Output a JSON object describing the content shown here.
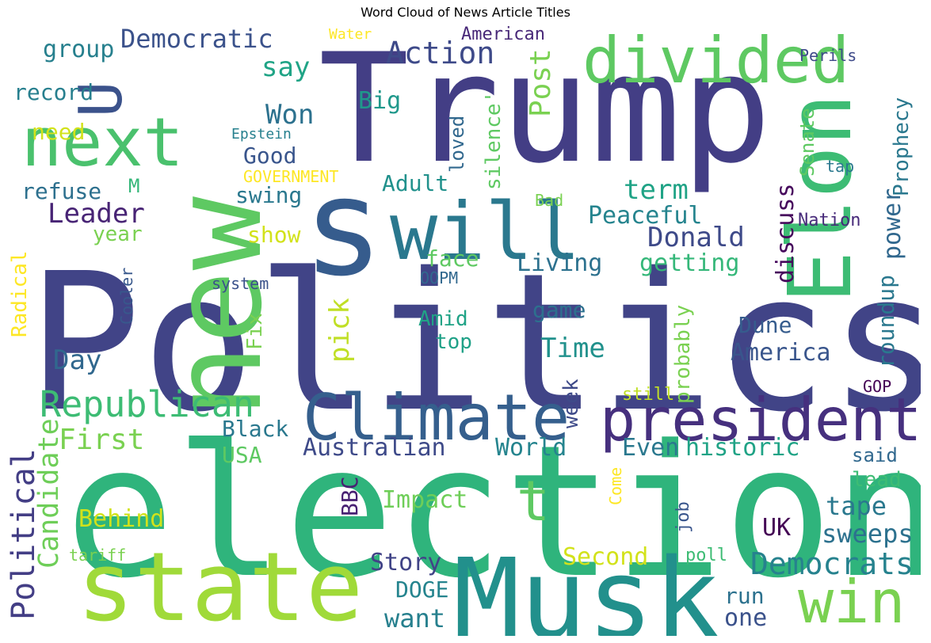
{
  "title": "Word Cloud of News Article Titles",
  "palette": [
    "#440154",
    "#3b528b",
    "#21918c",
    "#5ec962",
    "#fde725"
  ],
  "words": [
    {
      "text": "Politics",
      "color": "#414487"
    },
    {
      "text": "election",
      "color": "#2fb47c"
    },
    {
      "text": "Trump",
      "color": "#433e85"
    },
    {
      "text": "Musk",
      "color": "#22908c"
    },
    {
      "text": "state",
      "color": "#a0da39"
    },
    {
      "text": "new",
      "color": "#5ec962"
    },
    {
      "text": "s",
      "color": "#365c8d"
    },
    {
      "text": "Elon",
      "color": "#3dbc74"
    },
    {
      "text": "will",
      "color": "#2a788e"
    },
    {
      "text": "divided",
      "color": "#5ec962"
    },
    {
      "text": "Climate",
      "color": "#355f8d"
    },
    {
      "text": "president",
      "color": "#46307e"
    },
    {
      "text": "next",
      "color": "#4ac16d"
    },
    {
      "text": "U",
      "color": "#3b528b"
    },
    {
      "text": "win",
      "color": "#7ad151"
    },
    {
      "text": "t",
      "color": "#5ec962"
    },
    {
      "text": "Republican",
      "color": "#3dbc74"
    },
    {
      "text": "Democrats",
      "color": "#26828e"
    },
    {
      "text": "Political",
      "color": "#433e85"
    },
    {
      "text": "Candidate",
      "color": "#6ece58"
    },
    {
      "text": "Democratic",
      "color": "#3b528b"
    },
    {
      "text": "Action",
      "color": "#3e4a89"
    },
    {
      "text": "Post",
      "color": "#7ad151"
    },
    {
      "text": "say",
      "color": "#20a486"
    },
    {
      "text": "Won",
      "color": "#2c718e"
    },
    {
      "text": "Big",
      "color": "#1f988b"
    },
    {
      "text": "Good",
      "color": "#39558c"
    },
    {
      "text": "Leader",
      "color": "#482475"
    },
    {
      "text": "swing",
      "color": "#2a788e"
    },
    {
      "text": "term",
      "color": "#20a386"
    },
    {
      "text": "Adult",
      "color": "#21918c"
    },
    {
      "text": "Peaceful",
      "color": "#25848e"
    },
    {
      "text": "Donald",
      "color": "#3e4a89"
    },
    {
      "text": "Living",
      "color": "#2c718e"
    },
    {
      "text": "getting",
      "color": "#35b779"
    },
    {
      "text": "show",
      "color": "#d2e21b"
    },
    {
      "text": "face",
      "color": "#5ec962"
    },
    {
      "text": "year",
      "color": "#7ad151"
    },
    {
      "text": "refuse",
      "color": "#2d708e"
    },
    {
      "text": "record",
      "color": "#277f8e"
    },
    {
      "text": "group",
      "color": "#27808e"
    },
    {
      "text": "need",
      "color": "#d2e21b"
    },
    {
      "text": "Epstein",
      "color": "#27808e"
    },
    {
      "text": "GOVERNMENT",
      "color": "#fde725"
    },
    {
      "text": "M",
      "color": "#35b779"
    },
    {
      "text": "Water",
      "color": "#fde725"
    },
    {
      "text": "American",
      "color": "#482878"
    },
    {
      "text": "Perils",
      "color": "#3e4a89"
    },
    {
      "text": "Prophecy",
      "color": "#2a788e"
    },
    {
      "text": "Senate",
      "color": "#5ec962"
    },
    {
      "text": "power",
      "color": "#31688e"
    },
    {
      "text": "discuss",
      "color": "#46085c"
    },
    {
      "text": "tap",
      "color": "#2a788e"
    },
    {
      "text": "Nation",
      "color": "#472a7a"
    },
    {
      "text": "silence'",
      "color": "#5ec962"
    },
    {
      "text": "loved",
      "color": "#31688e"
    },
    {
      "text": "Bad",
      "color": "#7ad151"
    },
    {
      "text": "system",
      "color": "#3b528b"
    },
    {
      "text": "OOPM",
      "color": "#31688e"
    },
    {
      "text": "Radical",
      "color": "#fde725"
    },
    {
      "text": "Cooler",
      "color": "#38588c"
    },
    {
      "text": "Fix",
      "color": "#7ad151"
    },
    {
      "text": "pick",
      "color": "#c0df25"
    },
    {
      "text": "Amid",
      "color": "#20a386"
    },
    {
      "text": "top",
      "color": "#1fa187"
    },
    {
      "text": "game",
      "color": "#2d708e"
    },
    {
      "text": "Dune",
      "color": "#365c8d"
    },
    {
      "text": "America",
      "color": "#39558c"
    },
    {
      "text": "probably",
      "color": "#7ad151"
    },
    {
      "text": "roundup",
      "color": "#2a788e"
    },
    {
      "text": "Time",
      "color": "#21918c"
    },
    {
      "text": "Day",
      "color": "#31688e"
    },
    {
      "text": "week",
      "color": "#3e4a89"
    },
    {
      "text": "still",
      "color": "#c0df25"
    },
    {
      "text": "GOP",
      "color": "#440154"
    },
    {
      "text": "Black",
      "color": "#2a788e"
    },
    {
      "text": "First",
      "color": "#7ad151"
    },
    {
      "text": "Australian",
      "color": "#3e4a89"
    },
    {
      "text": "World",
      "color": "#25848e"
    },
    {
      "text": "Even",
      "color": "#2a788e"
    },
    {
      "text": "historic",
      "color": "#20a386"
    },
    {
      "text": "said",
      "color": "#31688e"
    },
    {
      "text": "lead",
      "color": "#3dbc74"
    },
    {
      "text": "USA",
      "color": "#5ec962"
    },
    {
      "text": "BBC",
      "color": "#482173"
    },
    {
      "text": "Impact",
      "color": "#6ece58"
    },
    {
      "text": "tape",
      "color": "#2a788e"
    },
    {
      "text": "sweeps",
      "color": "#2c718e"
    },
    {
      "text": "UK",
      "color": "#440154"
    },
    {
      "text": "Behind",
      "color": "#d2e21b"
    },
    {
      "text": "Come",
      "color": "#fde725"
    },
    {
      "text": "job",
      "color": "#39558c"
    },
    {
      "text": "Story",
      "color": "#414487"
    },
    {
      "text": "Second",
      "color": "#d2e21b"
    },
    {
      "text": "tariff",
      "color": "#7ad151"
    },
    {
      "text": "poll",
      "color": "#3dbc74"
    },
    {
      "text": "DOGE",
      "color": "#25848e"
    },
    {
      "text": "want",
      "color": "#27808e"
    },
    {
      "text": "run",
      "color": "#2c718e"
    },
    {
      "text": "one",
      "color": "#3b528b"
    }
  ]
}
